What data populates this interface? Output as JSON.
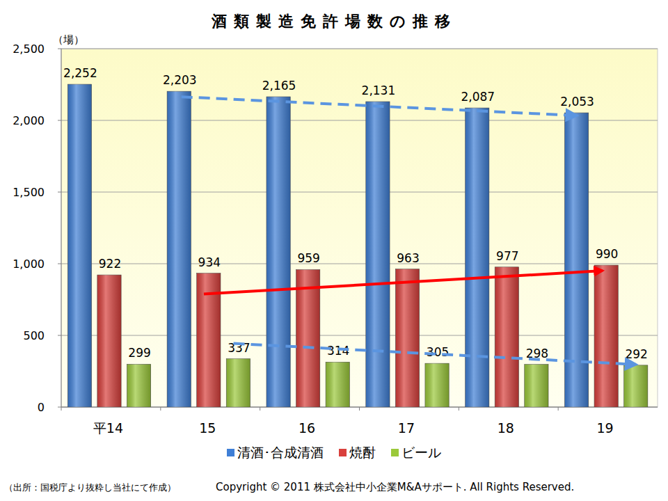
{
  "chart_data": {
    "type": "bar",
    "title": "酒類製造免許場数の推移",
    "y_label": "（場）",
    "categories": [
      "平14",
      "15",
      "16",
      "17",
      "18",
      "19"
    ],
    "series": [
      {
        "name": "清酒･合成清酒",
        "color": "#3f7fd6",
        "values": [
          2252,
          2203,
          2165,
          2131,
          2087,
          2053
        ],
        "value_labels": [
          "2,252",
          "2,203",
          "2,165",
          "2,131",
          "2,087",
          "2,053"
        ]
      },
      {
        "name": "焼酎",
        "color": "#d9403c",
        "values": [
          922,
          934,
          959,
          963,
          977,
          990
        ],
        "value_labels": [
          "922",
          "934",
          "959",
          "963",
          "977",
          "990"
        ]
      },
      {
        "name": "ビール",
        "color": "#9bc93a",
        "values": [
          299,
          337,
          314,
          305,
          298,
          292
        ],
        "value_labels": [
          "299",
          "337",
          "314",
          "305",
          "298",
          "292"
        ]
      }
    ],
    "ylim": [
      0,
      2500
    ],
    "yticks": [
      0,
      500,
      {
        "value": 1000,
        "label": "1,000"
      },
      {
        "value": 1500,
        "label": "1,500"
      },
      {
        "value": 2000,
        "label": "2,000"
      },
      {
        "value": 2500,
        "label": "2,500"
      }
    ],
    "grid": true,
    "data_labels": true,
    "legend": "bottom",
    "source": "（出所：国税庁より抜粋し当社にて作成）",
    "copyright": "Copyright © 2011 株式会社中小企業M&Aサポート. All Rights Reserved."
  }
}
